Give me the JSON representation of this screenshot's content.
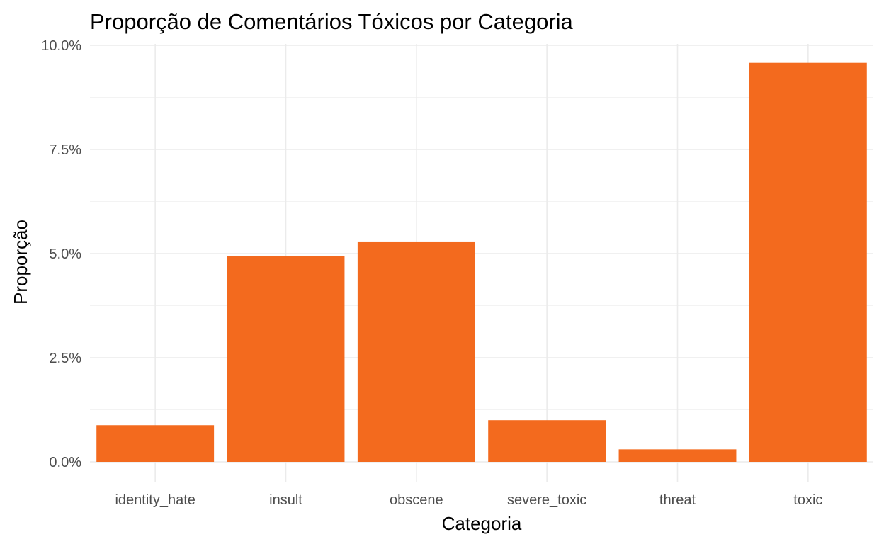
{
  "chart_data": {
    "type": "bar",
    "title": "Proporção de Comentários Tóxicos por Categoria",
    "xlabel": "Categoria",
    "ylabel": "Proporção",
    "categories": [
      "identity_hate",
      "insult",
      "obscene",
      "severe_toxic",
      "threat",
      "toxic"
    ],
    "values": [
      0.0088,
      0.0494,
      0.0529,
      0.01,
      0.003,
      0.0958
    ],
    "ylim": [
      0,
      0.1
    ],
    "yticks": [
      0,
      0.025,
      0.05,
      0.075,
      0.1
    ],
    "ytick_labels": [
      "0.0%",
      "2.5%",
      "5.0%",
      "7.5%",
      "10.0%"
    ],
    "grid": true,
    "legend": "none",
    "colors": {
      "bar": "#f36a1e",
      "grid_major": "#ebebeb",
      "grid_minor": "#f3f3f3",
      "tick_text": "#4d4d4d",
      "title_text": "#000000"
    }
  }
}
